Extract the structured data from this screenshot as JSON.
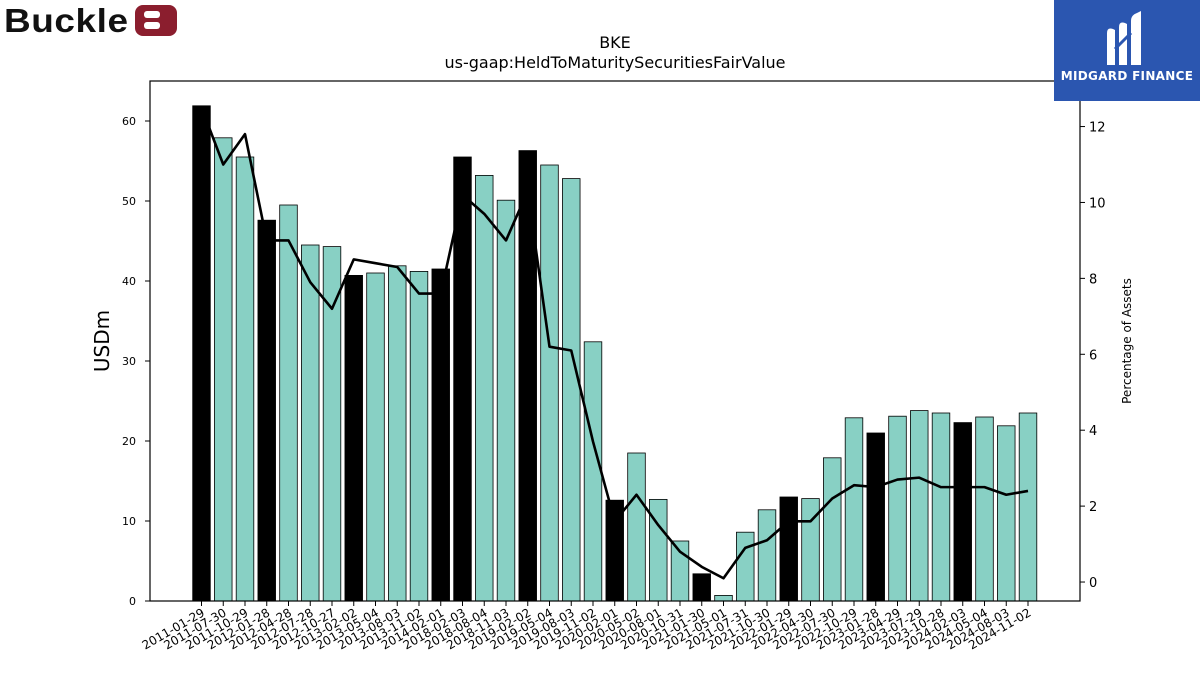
{
  "header": {
    "company_logo_text": "Buckle",
    "brand_logo_text": "MIDGARD FINANCE"
  },
  "colors": {
    "bar_default": "#88d0c4",
    "bar_highlight": "#000000",
    "line": "#000000",
    "brand_badge": "#8b1e2e",
    "brand_panel": "#2b56b0"
  },
  "chart_data": {
    "type": "bar",
    "title": "BKE",
    "subtitle": "us-gaap:HeldToMaturitySecuritiesFairValue",
    "ylabel": "USDm",
    "y2label": "Percentage of Assets",
    "ylim": [
      0,
      65
    ],
    "y2lim": [
      -0.5,
      13.2
    ],
    "yticks": [
      0,
      10,
      20,
      30,
      40,
      50,
      60
    ],
    "y2ticks": [
      0,
      2,
      4,
      6,
      8,
      10,
      12
    ],
    "grid": false,
    "categories": [
      "2011-01-29",
      "2011-07-30",
      "2011-10-29",
      "2012-01-28",
      "2012-04-28",
      "2012-07-28",
      "2012-10-27",
      "2013-02-02",
      "2013-05-04",
      "2013-08-03",
      "2013-11-02",
      "2014-02-01",
      "2018-02-03",
      "2018-08-04",
      "2018-11-03",
      "2019-02-02",
      "2019-05-04",
      "2019-08-03",
      "2019-11-02",
      "2020-02-01",
      "2020-05-02",
      "2020-08-01",
      "2020-10-31",
      "2021-01-30",
      "2021-05-01",
      "2021-07-31",
      "2021-10-30",
      "2022-01-29",
      "2022-04-30",
      "2022-07-30",
      "2022-10-29",
      "2023-01-28",
      "2023-04-29",
      "2023-07-29",
      "2023-10-28",
      "2024-02-03",
      "2024-05-04",
      "2024-08-03",
      "2024-11-02"
    ],
    "series": [
      {
        "kind": "bar",
        "axis": "left",
        "values": [
          61.9,
          57.9,
          55.5,
          47.6,
          49.5,
          44.5,
          44.3,
          40.7,
          41.0,
          41.9,
          41.2,
          41.5,
          55.5,
          53.2,
          50.1,
          56.3,
          54.5,
          52.8,
          32.4,
          12.6,
          18.5,
          12.7,
          7.5,
          3.4,
          0.7,
          8.6,
          11.4,
          13.0,
          12.8,
          17.9,
          22.9,
          21.0,
          23.1,
          23.8,
          23.5,
          22.3,
          23.0,
          21.9,
          23.5
        ],
        "highlight": [
          true,
          false,
          false,
          true,
          false,
          false,
          false,
          true,
          false,
          false,
          false,
          true,
          true,
          false,
          false,
          true,
          false,
          false,
          false,
          true,
          false,
          false,
          false,
          true,
          false,
          false,
          false,
          true,
          false,
          false,
          false,
          true,
          false,
          false,
          false,
          true,
          false,
          false,
          false
        ]
      },
      {
        "kind": "line",
        "axis": "right",
        "values": [
          12.5,
          11.0,
          11.8,
          9.0,
          9.0,
          7.9,
          7.2,
          8.5,
          8.4,
          8.3,
          7.6,
          7.6,
          10.2,
          9.7,
          9.0,
          10.3,
          6.2,
          6.1,
          3.7,
          1.6,
          2.3,
          1.5,
          0.8,
          0.4,
          0.1,
          0.9,
          1.1,
          1.6,
          1.6,
          2.2,
          2.55,
          2.5,
          2.7,
          2.75,
          2.5,
          2.5,
          2.5,
          2.3,
          2.4
        ]
      }
    ]
  }
}
